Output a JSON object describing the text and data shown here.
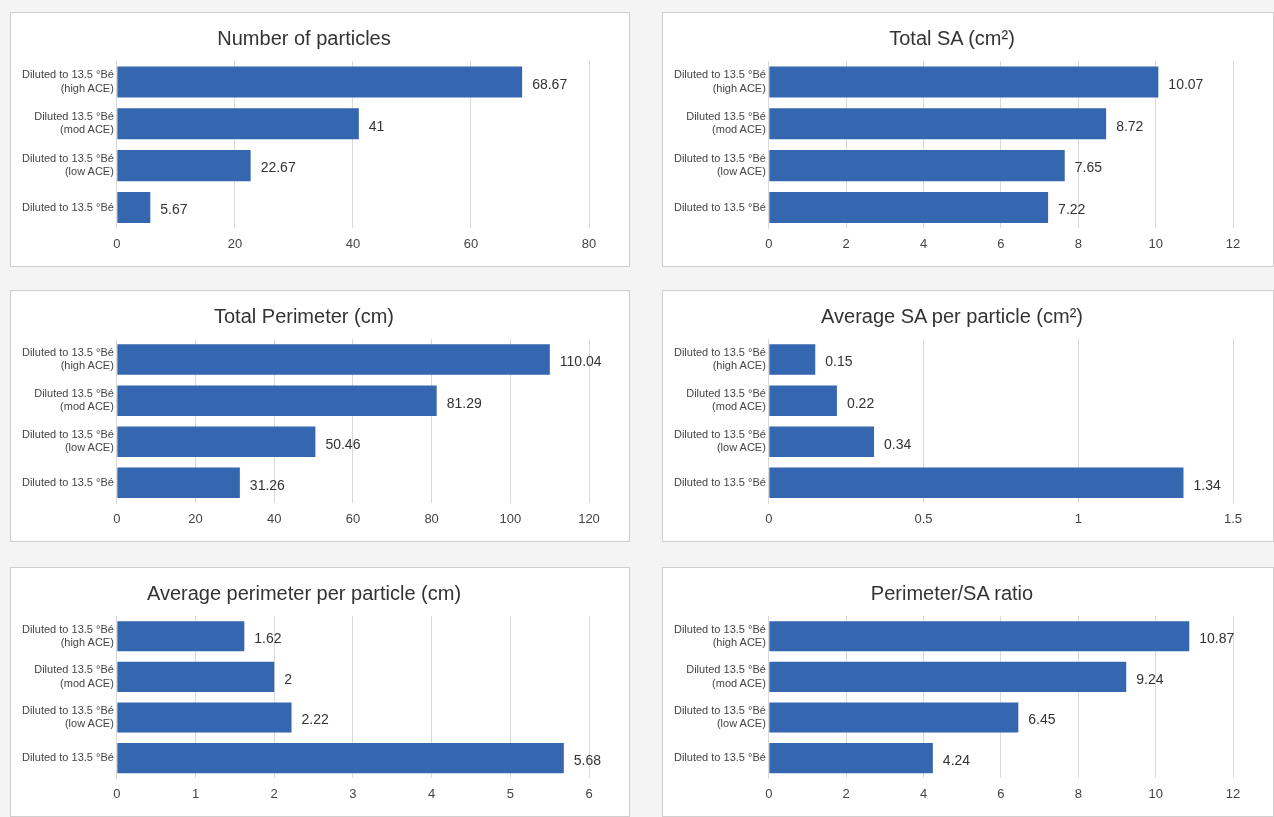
{
  "chart_data": [
    {
      "type": "bar",
      "orientation": "horizontal",
      "title": "Number of particles",
      "categories": [
        "Diluted to 13.5 °Bé\n(high ACE)",
        "Diluted 13.5 °Bé\n(mod ACE)",
        "Diluted to 13.5 °Bé\n(low ACE)",
        "Diluted to 13.5 °Bé"
      ],
      "values": [
        68.67,
        41,
        22.67,
        5.67
      ],
      "color": "#3566b0",
      "xlim": [
        0,
        80
      ],
      "xticks": [
        0,
        20,
        40,
        60,
        80
      ],
      "grid": "x",
      "data_labels": true
    },
    {
      "type": "bar",
      "orientation": "horizontal",
      "title": "Total SA (cm²)",
      "categories": [
        "Diluted to 13.5 °Bé\n(high ACE)",
        "Diluted 13.5 °Bé\n(mod ACE)",
        "Diluted to 13.5 °Bé\n(low ACE)",
        "Diluted to 13.5 °Bé"
      ],
      "values": [
        10.07,
        8.72,
        7.65,
        7.22
      ],
      "color": "#3566b0",
      "xlim": [
        0,
        12
      ],
      "xticks": [
        0,
        2,
        4,
        6,
        8,
        10,
        12
      ],
      "grid": "x",
      "data_labels": true
    },
    {
      "type": "bar",
      "orientation": "horizontal",
      "title": "Total Perimeter (cm)",
      "categories": [
        "Diluted to 13.5 °Bé\n(high ACE)",
        "Diluted 13.5 °Bé\n(mod ACE)",
        "Diluted to 13.5 °Bé\n(low ACE)",
        "Diluted to 13.5 °Bé"
      ],
      "values": [
        110.04,
        81.29,
        50.46,
        31.26
      ],
      "color": "#3566b0",
      "xlim": [
        0,
        120
      ],
      "xticks": [
        0,
        20,
        40,
        60,
        80,
        100,
        120
      ],
      "grid": "x",
      "data_labels": true
    },
    {
      "type": "bar",
      "orientation": "horizontal",
      "title": "Average SA per particle (cm²)",
      "categories": [
        "Diluted to 13.5 °Bé\n(high ACE)",
        "Diluted 13.5 °Bé\n(mod ACE)",
        "Diluted to 13.5 °Bé\n(low ACE)",
        "Diluted to 13.5 °Bé"
      ],
      "values": [
        0.15,
        0.22,
        0.34,
        1.34
      ],
      "color": "#3566b0",
      "xlim": [
        0,
        1.5
      ],
      "xticks": [
        0,
        0.5,
        1,
        1.5
      ],
      "grid": "x",
      "data_labels": true
    },
    {
      "type": "bar",
      "orientation": "horizontal",
      "title": "Average perimeter per particle (cm)",
      "categories": [
        "Diluted to 13.5 °Bé\n(high ACE)",
        "Diluted 13.5 °Bé\n(mod ACE)",
        "Diluted to 13.5 °Bé\n(low ACE)",
        "Diluted to 13.5 °Bé"
      ],
      "values": [
        1.62,
        2,
        2.22,
        5.68
      ],
      "color": "#3566b0",
      "xlim": [
        0,
        6
      ],
      "xticks": [
        0,
        1,
        2,
        3,
        4,
        5,
        6
      ],
      "grid": "x",
      "data_labels": true
    },
    {
      "type": "bar",
      "orientation": "horizontal",
      "title": "Perimeter/SA ratio",
      "categories": [
        "Diluted to 13.5 °Bé\n(high ACE)",
        "Diluted 13.5 °Bé\n(mod ACE)",
        "Diluted to 13.5 °Bé\n(low ACE)",
        "Diluted to 13.5 °Bé"
      ],
      "values": [
        10.87,
        9.24,
        6.45,
        4.24
      ],
      "color": "#3566b0",
      "xlim": [
        0,
        12
      ],
      "xticks": [
        0,
        2,
        4,
        6,
        8,
        10,
        12
      ],
      "grid": "x",
      "data_labels": true
    }
  ]
}
